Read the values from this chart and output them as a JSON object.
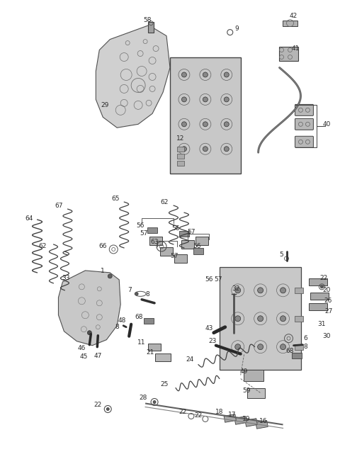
{
  "bg_color": "#ffffff",
  "fig_width": 4.8,
  "fig_height": 6.55,
  "dpi": 100,
  "line_color": "#404040",
  "label_color": "#2a2a2a",
  "label_fontsize": 6.5,
  "part_color": "#787878",
  "part_edge": "#303030",
  "part_fill": "#c8c8c8"
}
